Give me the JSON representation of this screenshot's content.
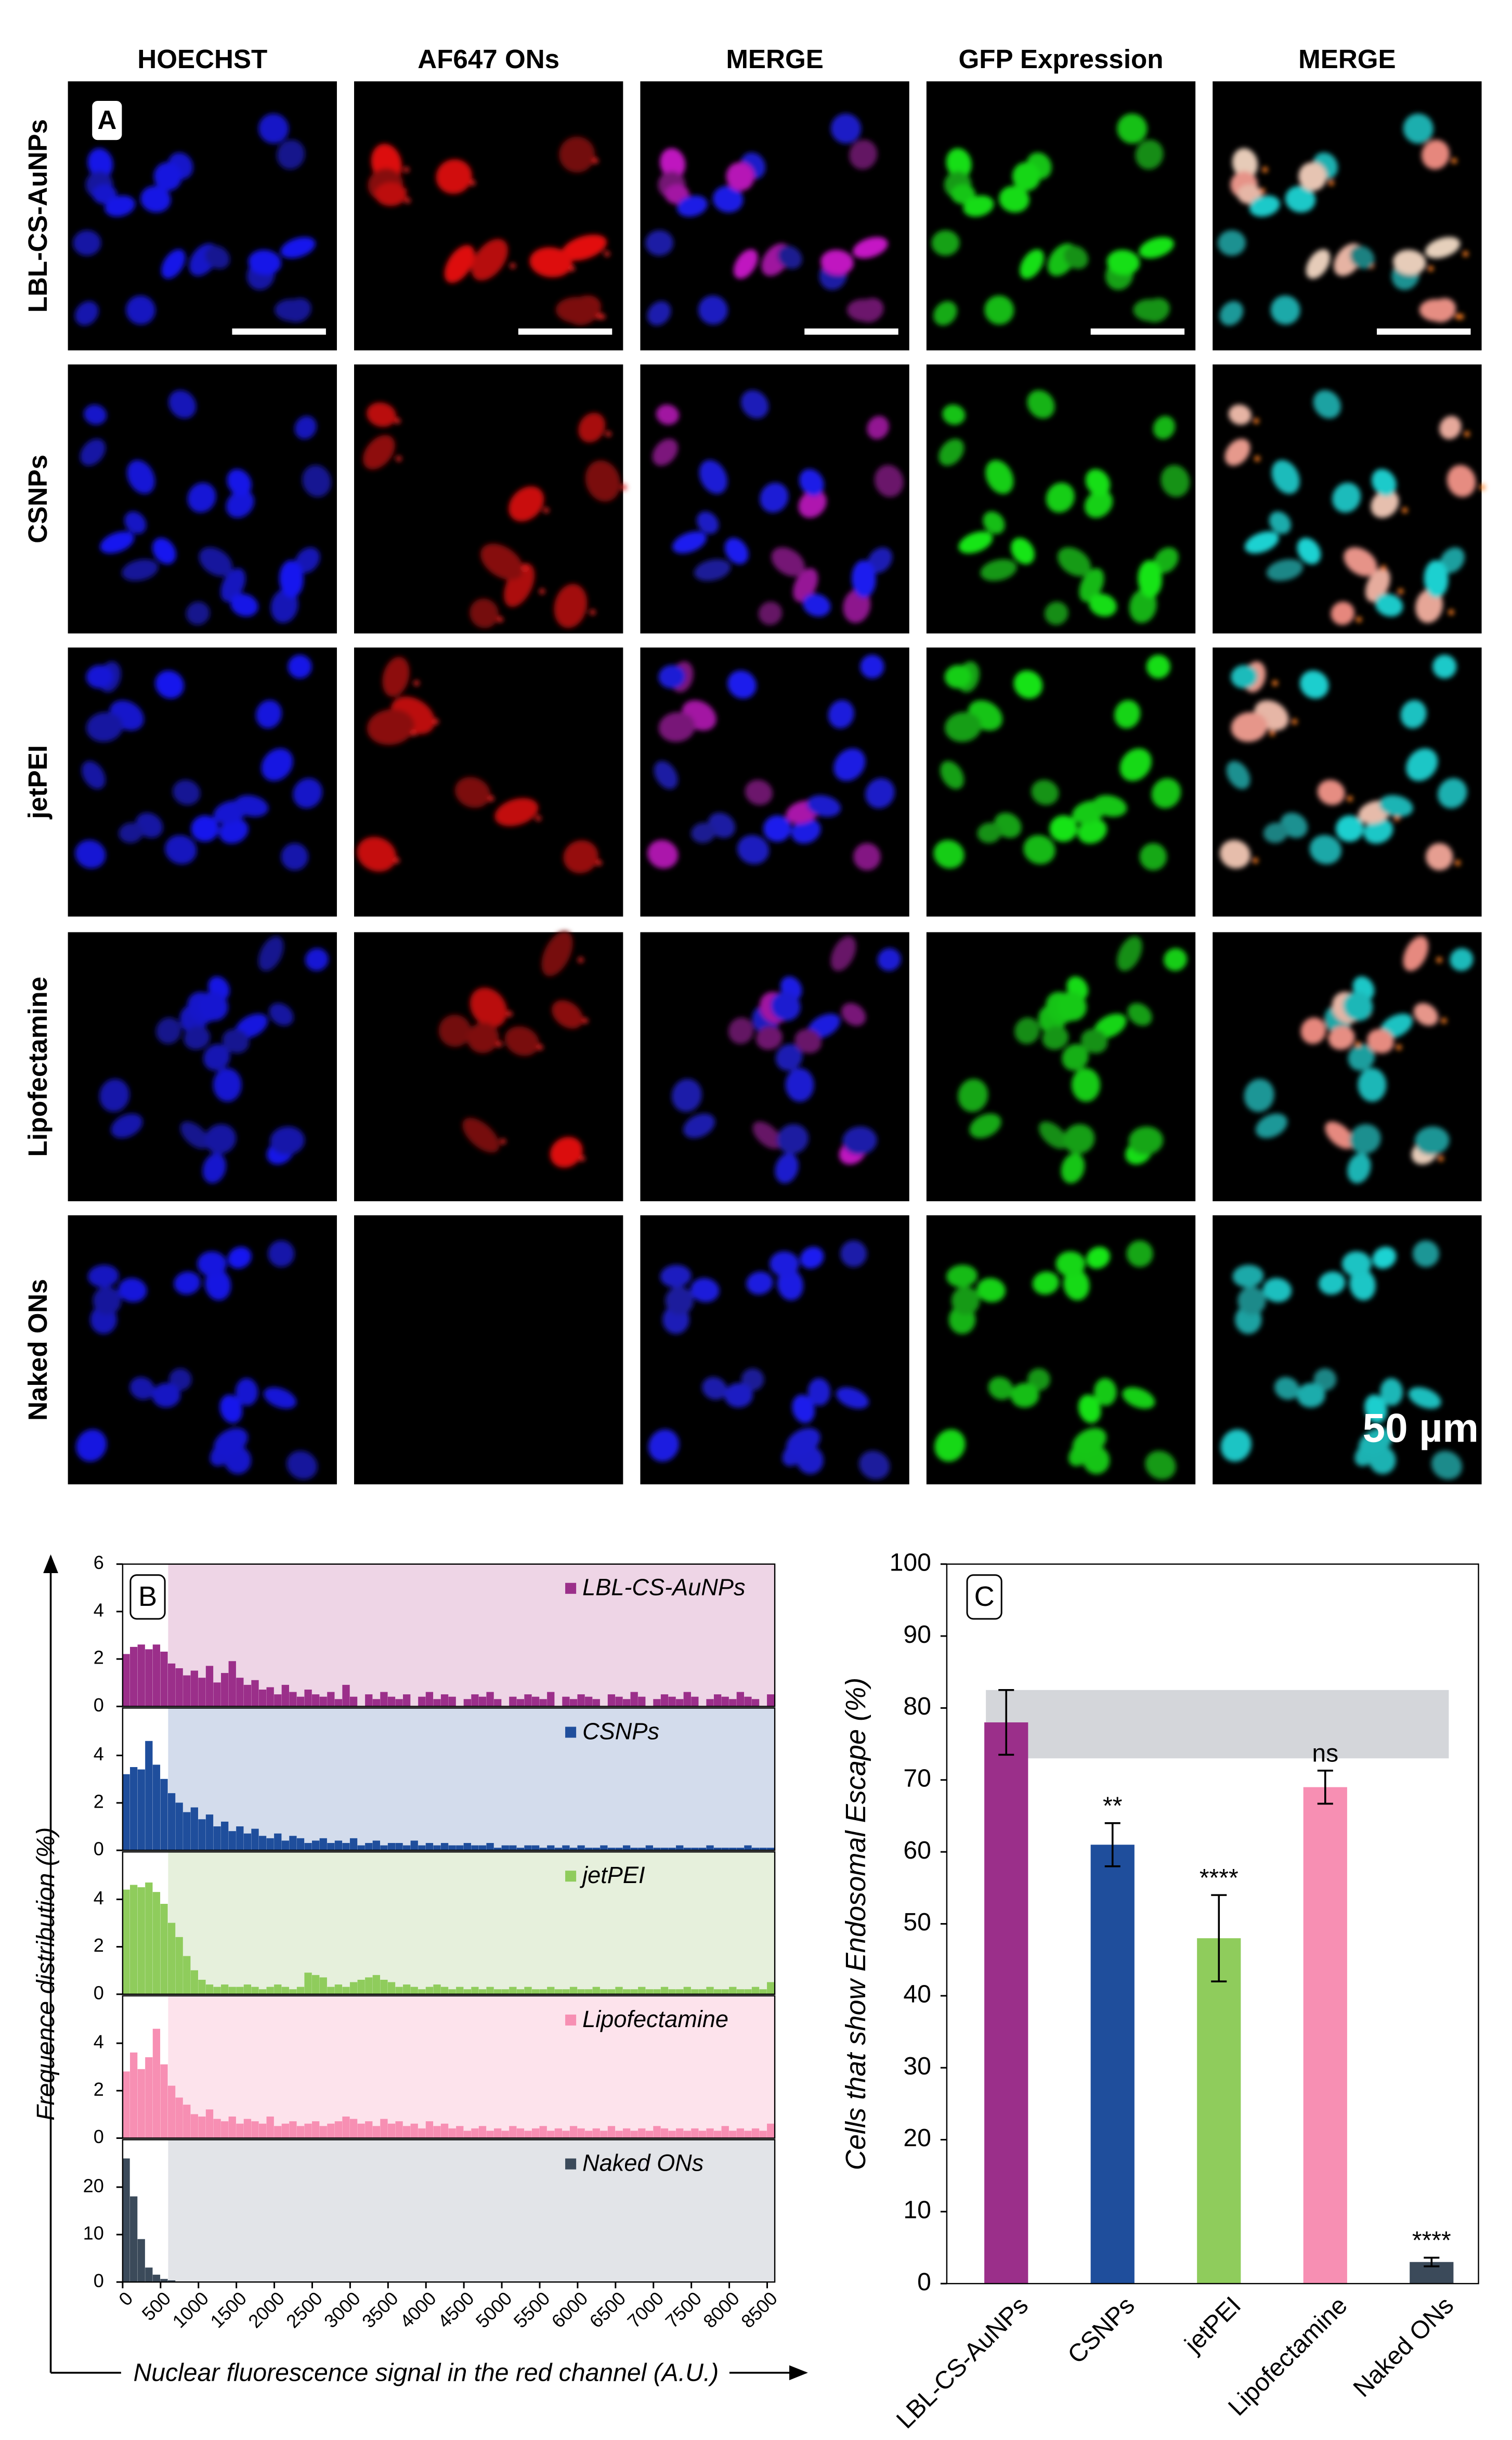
{
  "panel_a": {
    "label": "A",
    "columns": [
      "HOECHST",
      "AF647 ONs",
      "MERGE",
      "GFP Expression",
      "MERGE"
    ],
    "rows": [
      "LBL-CS-AuNPs",
      "CSNPs",
      "jetPEI",
      "Lipofectamine",
      "Naked ONs"
    ],
    "scale_bar": "50 µm"
  },
  "chart_data": [
    {
      "type": "histogram",
      "label": "B",
      "xlabel": "Nuclear fluorescence signal in the red channel (A.U.)",
      "ylabel": "Frequence distribution (%)",
      "bins": [
        0,
        100,
        200,
        300,
        400,
        500,
        600,
        700,
        800,
        900,
        1000,
        1100,
        1200,
        1300,
        1400,
        1500,
        1600,
        1700,
        1800,
        1900,
        2000,
        2100,
        2200,
        2300,
        2400,
        2500,
        2600,
        2700,
        2800,
        2900,
        3000,
        3100,
        3200,
        3300,
        3400,
        3500,
        3600,
        3700,
        3800,
        3900,
        4000,
        4100,
        4200,
        4300,
        4400,
        4500,
        4600,
        4700,
        4800,
        4900,
        5000,
        5100,
        5200,
        5300,
        5400,
        5500,
        5600,
        5700,
        5800,
        5900,
        6000,
        6100,
        6200,
        6300,
        6400,
        6500,
        6600,
        6700,
        6800,
        6900,
        7000,
        7100,
        7200,
        7300,
        7400,
        7500,
        7600,
        7700,
        7800,
        7900,
        8000,
        8100,
        8200,
        8300,
        8400,
        8500,
        8600
      ],
      "xlim": [
        0,
        8600
      ],
      "xticks": [
        0,
        500,
        1000,
        1500,
        2000,
        2500,
        3000,
        3500,
        4000,
        4500,
        5000,
        5500,
        6000,
        6500,
        7000,
        7500,
        8000,
        8500
      ],
      "threshold": 600,
      "series": [
        {
          "name": "LBL-CS-AuNPs",
          "color": "#9b2f8a",
          "shade": "#eed5e6",
          "ylim": [
            0,
            6
          ],
          "yticks": [
            0,
            2,
            4,
            6
          ],
          "values": [
            2.2,
            2.5,
            2.6,
            2.4,
            2.6,
            2.3,
            1.8,
            1.6,
            1.3,
            1.5,
            1.2,
            1.7,
            1.0,
            1.4,
            1.9,
            1.2,
            0.9,
            1.1,
            0.7,
            0.8,
            0.5,
            0.9,
            0.6,
            0.4,
            0.7,
            0.5,
            0.4,
            0.6,
            0.3,
            0.9,
            0.4,
            0,
            0.5,
            0.3,
            0.6,
            0.4,
            0.3,
            0.5,
            0,
            0.4,
            0.6,
            0.3,
            0.5,
            0.4,
            0,
            0.3,
            0.5,
            0.4,
            0.6,
            0.3,
            0,
            0.4,
            0.3,
            0.5,
            0.4,
            0.3,
            0.6,
            0,
            0.4,
            0.3,
            0.5,
            0.4,
            0.3,
            0,
            0.5,
            0.4,
            0.3,
            0.6,
            0.4,
            0,
            0.3,
            0.5,
            0.4,
            0.3,
            0.6,
            0.4,
            0,
            0.3,
            0.5,
            0.4,
            0.3,
            0.6,
            0.4,
            0.3,
            0,
            0.5
          ]
        },
        {
          "name": "CSNPs",
          "color": "#1f4e9c",
          "shade": "#d3dcec",
          "ylim": [
            0,
            6
          ],
          "yticks": [
            0,
            2,
            4
          ],
          "values": [
            3.2,
            3.5,
            3.4,
            4.6,
            3.6,
            3.0,
            2.4,
            2.0,
            1.6,
            1.8,
            1.3,
            1.5,
            1.0,
            1.2,
            0.8,
            1.0,
            0.7,
            0.9,
            0.6,
            0.5,
            0.7,
            0.4,
            0.6,
            0.5,
            0.3,
            0.4,
            0.5,
            0.3,
            0.4,
            0.3,
            0.5,
            0.2,
            0.3,
            0.4,
            0.2,
            0.3,
            0.3,
            0.2,
            0.4,
            0.2,
            0.3,
            0.2,
            0.3,
            0.2,
            0.2,
            0.3,
            0.2,
            0.2,
            0.3,
            0.1,
            0.2,
            0.2,
            0.1,
            0.2,
            0.2,
            0.1,
            0.2,
            0.1,
            0.2,
            0.1,
            0.2,
            0.1,
            0.1,
            0.2,
            0.1,
            0.1,
            0.2,
            0.1,
            0.1,
            0.2,
            0.1,
            0.1,
            0.1,
            0.2,
            0.1,
            0.1,
            0.1,
            0.2,
            0.1,
            0.1,
            0.1,
            0.1,
            0.2,
            0.1,
            0.1,
            0.1
          ]
        },
        {
          "name": "jetPEI",
          "color": "#8fcc5c",
          "shade": "#e6f0dc",
          "ylim": [
            0,
            6
          ],
          "yticks": [
            0,
            2,
            4
          ],
          "values": [
            4.4,
            4.6,
            4.5,
            4.7,
            4.3,
            3.8,
            3.0,
            2.4,
            1.6,
            1.0,
            0.6,
            0.4,
            0.3,
            0.4,
            0.3,
            0.3,
            0.4,
            0.3,
            0.2,
            0.3,
            0.4,
            0.3,
            0.2,
            0.3,
            0.9,
            0.8,
            0.7,
            0.3,
            0.4,
            0.3,
            0.5,
            0.6,
            0.7,
            0.8,
            0.6,
            0.5,
            0.3,
            0.4,
            0.3,
            0.2,
            0.3,
            0.4,
            0.3,
            0.2,
            0.3,
            0.2,
            0.3,
            0.2,
            0.3,
            0.2,
            0.2,
            0.3,
            0.2,
            0.3,
            0.2,
            0.2,
            0.3,
            0.2,
            0.2,
            0.3,
            0.2,
            0.2,
            0.3,
            0.2,
            0.2,
            0.3,
            0.2,
            0.2,
            0.3,
            0.2,
            0.2,
            0.3,
            0.2,
            0.2,
            0.3,
            0.2,
            0.2,
            0.3,
            0.2,
            0.2,
            0.3,
            0.2,
            0.2,
            0.3,
            0.2,
            0.5
          ]
        },
        {
          "name": "Lipofectamine",
          "color": "#f78fb3",
          "shade": "#fde3ec",
          "ylim": [
            0,
            6
          ],
          "yticks": [
            0,
            2,
            4
          ],
          "values": [
            2.8,
            3.6,
            2.9,
            3.4,
            4.6,
            3.1,
            2.2,
            1.7,
            1.4,
            1.0,
            0.9,
            1.2,
            0.8,
            0.7,
            0.9,
            0.6,
            0.8,
            0.7,
            0.6,
            0.9,
            0.5,
            0.6,
            0.7,
            0.5,
            0.6,
            0.7,
            0.5,
            0.6,
            0.7,
            0.9,
            0.8,
            0.6,
            0.7,
            0.5,
            0.8,
            0.6,
            0.7,
            0.5,
            0.6,
            0.4,
            0.7,
            0.5,
            0.6,
            0.4,
            0.5,
            0.3,
            0.4,
            0.5,
            0.3,
            0.4,
            0.3,
            0.5,
            0.4,
            0.3,
            0.4,
            0.5,
            0.3,
            0.4,
            0.3,
            0.5,
            0.4,
            0.3,
            0.4,
            0.3,
            0.5,
            0.3,
            0.4,
            0.3,
            0.4,
            0.3,
            0.5,
            0.4,
            0.3,
            0.4,
            0.3,
            0.4,
            0.3,
            0.4,
            0.3,
            0.5,
            0.3,
            0.4,
            0.3,
            0.4,
            0.3,
            0.6
          ]
        },
        {
          "name": "Naked ONs",
          "color": "#3b4a5a",
          "shade": "#e2e4e8",
          "ylim": [
            0,
            30
          ],
          "yticks": [
            0,
            10,
            20
          ],
          "values": [
            26,
            18,
            9,
            3,
            1.5,
            0.6,
            0.3,
            0,
            0,
            0,
            0,
            0,
            0,
            0,
            0,
            0,
            0,
            0,
            0,
            0,
            0,
            0,
            0,
            0,
            0,
            0,
            0,
            0,
            0,
            0,
            0,
            0,
            0,
            0,
            0,
            0,
            0,
            0,
            0,
            0,
            0,
            0,
            0,
            0,
            0,
            0,
            0,
            0,
            0,
            0,
            0,
            0,
            0,
            0,
            0,
            0,
            0,
            0,
            0,
            0,
            0,
            0,
            0,
            0,
            0,
            0,
            0,
            0,
            0,
            0,
            0,
            0,
            0,
            0,
            0,
            0,
            0,
            0,
            0,
            0,
            0,
            0,
            0,
            0,
            0,
            0
          ]
        }
      ]
    },
    {
      "type": "bar",
      "label": "C",
      "ylabel": "Cells that show Endosomal  Escape (%)",
      "categories": [
        "LBL-CS-AuNPs",
        "CSNPs",
        "jetPEI",
        "Lipofectamine",
        "Naked ONs"
      ],
      "values": [
        78,
        61,
        48,
        69,
        3
      ],
      "errors": [
        4.5,
        3,
        6,
        2.3,
        0.6
      ],
      "colors": [
        "#9b2f8a",
        "#1f4e9c",
        "#8fcc5c",
        "#f78fb3",
        "#3b4a5a"
      ],
      "annotations": [
        null,
        "**",
        "****",
        "ns",
        "****"
      ],
      "band": [
        73,
        82.5
      ],
      "ylim": [
        0,
        100
      ],
      "yticks": [
        0,
        10,
        20,
        30,
        40,
        50,
        60,
        70,
        80,
        90,
        100
      ]
    }
  ]
}
